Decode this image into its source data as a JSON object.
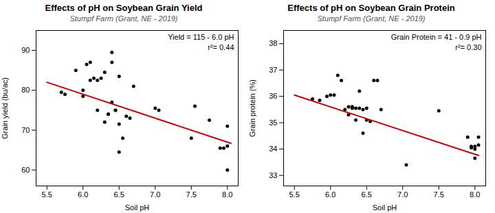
{
  "chart_data": [
    {
      "type": "scatter",
      "title": "Effects of pH on Soybean Grain Yield",
      "subtitle": "Stumpf Farm (Grant, NE - 2019)",
      "x_label": "Soil pH",
      "y_label": "Grain yield (bu/ac)",
      "xlim": [
        5.35,
        8.15
      ],
      "xticks": [
        {
          "value": 5.5,
          "label": "5.5"
        },
        {
          "value": 6,
          "label": "6.0"
        },
        {
          "value": 6.5,
          "label": "6.5"
        },
        {
          "value": 7,
          "label": "7.0"
        },
        {
          "value": 7.5,
          "label": "7.5"
        },
        {
          "value": 8,
          "label": "8.0"
        }
      ],
      "ylim": [
        56,
        95
      ],
      "yticks": [
        60,
        70,
        80,
        90
      ],
      "grid": false,
      "annotations": [
        "Yield = 115 - 6.0 pH",
        "r²= 0.44"
      ],
      "series": [
        {
          "type": "scatter",
          "color": "#000000",
          "x": [
            5.7,
            5.75,
            5.9,
            6.0,
            6.0,
            6.05,
            6.1,
            6.1,
            6.15,
            6.2,
            6.2,
            6.25,
            6.3,
            6.3,
            6.35,
            6.35,
            6.4,
            6.4,
            6.4,
            6.45,
            6.45,
            6.5,
            6.5,
            6.5,
            6.55,
            6.6,
            6.65,
            6.7,
            7.0,
            7.05,
            7.5,
            7.55,
            7.75,
            7.9,
            7.95,
            8.0,
            8.0,
            8.0
          ],
          "values": [
            79.5,
            79.0,
            85.0,
            80.0,
            78.5,
            86.5,
            87.0,
            82.5,
            83.0,
            82.5,
            75.0,
            83.0,
            84.5,
            72.0,
            74.0,
            74.0,
            77.0,
            89.5,
            87.0,
            75.0,
            75.0,
            83.5,
            64.5,
            71.5,
            68.0,
            73.5,
            73.0,
            81.0,
            75.5,
            75.0,
            68.0,
            76.0,
            72.5,
            65.5,
            65.5,
            60.0,
            71.0,
            66.0
          ]
        },
        {
          "type": "line",
          "color": "#cc0000",
          "x": [
            5.5,
            8.05
          ],
          "values": [
            82,
            66.7
          ]
        }
      ]
    },
    {
      "type": "scatter",
      "title": "Effects of pH on Soybean Grain Protein",
      "subtitle": "Stumpf Farm (Grant, NE - 2019)",
      "x_label": "Soil pH",
      "y_label": "Grain protein (%)",
      "xlim": [
        5.35,
        8.15
      ],
      "xticks": [
        {
          "value": 5.5,
          "label": "5.5"
        },
        {
          "value": 6,
          "label": "6.0"
        },
        {
          "value": 6.5,
          "label": "6.5"
        },
        {
          "value": 7,
          "label": "7.0"
        },
        {
          "value": 7.5,
          "label": "7.5"
        },
        {
          "value": 8,
          "label": "8.0"
        }
      ],
      "ylim": [
        32.6,
        38.5
      ],
      "yticks": [
        33,
        34,
        35,
        36,
        37,
        38
      ],
      "grid": false,
      "annotations": [
        "Grain Protein = 41 - 0.9 pH",
        "r²= 0.30"
      ],
      "series": [
        {
          "type": "scatter",
          "color": "#000000",
          "x": [
            5.75,
            5.85,
            5.95,
            6.0,
            6.05,
            6.1,
            6.15,
            6.2,
            6.25,
            6.25,
            6.3,
            6.3,
            6.3,
            6.35,
            6.35,
            6.4,
            6.4,
            6.45,
            6.45,
            6.5,
            6.5,
            6.55,
            6.6,
            6.65,
            6.7,
            7.05,
            7.5,
            7.9,
            7.95,
            7.95,
            8.0,
            8.0,
            8.0,
            8.05,
            8.05
          ],
          "values": [
            35.9,
            35.85,
            36.0,
            36.05,
            36.05,
            36.8,
            36.6,
            35.5,
            35.3,
            35.6,
            35.55,
            35.6,
            35.6,
            35.1,
            35.55,
            35.55,
            36.2,
            35.5,
            34.6,
            35.55,
            35.1,
            35.05,
            36.6,
            36.6,
            35.5,
            33.4,
            35.45,
            34.45,
            34.05,
            34.1,
            33.65,
            34.0,
            34.1,
            34.45,
            34.15
          ]
        },
        {
          "type": "line",
          "color": "#cc0000",
          "x": [
            5.5,
            8.05
          ],
          "values": [
            36.05,
            33.755
          ]
        }
      ]
    }
  ]
}
